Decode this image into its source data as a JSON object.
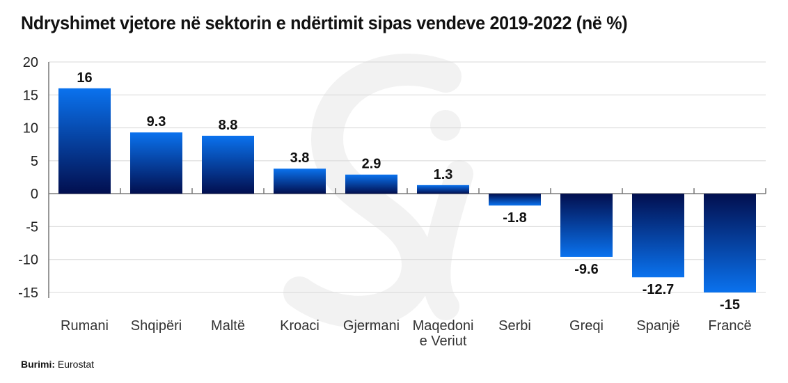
{
  "watermark": "Si",
  "chart_data": {
    "type": "bar",
    "title": "Ndryshimet vjetore në sektorin e ndërtimit sipas vendeve 2019-2022 (në %)",
    "categories": [
      [
        "Rumani"
      ],
      [
        "Shqipëri"
      ],
      [
        "Maltë"
      ],
      [
        "Kroaci"
      ],
      [
        "Gjermani"
      ],
      [
        "Maqedoni",
        "e Veriut"
      ],
      [
        "Serbi"
      ],
      [
        "Greqi"
      ],
      [
        "Spanjë"
      ],
      [
        "Francë"
      ]
    ],
    "values": [
      16,
      9.3,
      8.8,
      3.8,
      2.9,
      1.3,
      -1.8,
      -9.6,
      -12.7,
      -15
    ],
    "value_labels": [
      "16",
      "9.3",
      "8.8",
      "3.8",
      "2.9",
      "1.3",
      "-1.8",
      "-9.6",
      "-12.7",
      "-15"
    ],
    "yticks": [
      20,
      15,
      10,
      5,
      0,
      -5,
      -10,
      -15
    ],
    "ylim": [
      -15,
      20
    ],
    "xlabel": "",
    "ylabel": "",
    "grid": true,
    "colors": {
      "bar_light": "#0a72ee",
      "bar_dark": "#020f4f",
      "grid": "#d8d8d8",
      "axis": "#777777"
    }
  },
  "source": {
    "label": "Burimi:",
    "value": "Eurostat"
  }
}
